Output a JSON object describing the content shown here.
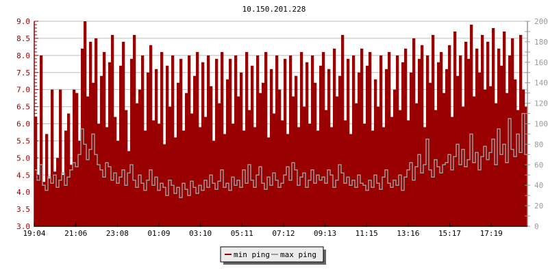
{
  "chart_data": {
    "type": "bar",
    "title": "10.150.201.228",
    "x_tick_labels": [
      "19:04",
      "21:06",
      "23:08",
      "01:09",
      "03:10",
      "05:11",
      "07:12",
      "09:13",
      "11:15",
      "13:16",
      "15:17",
      "17:19"
    ],
    "left_axis": {
      "ylim": [
        3.0,
        9.0
      ],
      "ticks": [
        "3.0",
        "3.5",
        "4.0",
        "4.5",
        "5.0",
        "5.5",
        "6.0",
        "6.5",
        "7.0",
        "7.5",
        "8.0",
        "8.5",
        "9.0"
      ]
    },
    "right_axis": {
      "ylim": [
        0,
        200
      ],
      "ticks": [
        "0",
        "20",
        "40",
        "60",
        "80",
        "100",
        "120",
        "140",
        "160",
        "180",
        "200"
      ]
    },
    "grid": true,
    "legend_position": "bottom",
    "colors": {
      "min_ping": "#990000",
      "max_ping": "#999999",
      "left_axis": "#990000",
      "right_axis": "#999999",
      "grid": "#bbbbbb"
    },
    "series": [
      {
        "name": "min ping",
        "axis": "left",
        "values": [
          6.2,
          4.5,
          8.0,
          4.3,
          5.7,
          4.4,
          7.0,
          4.6,
          5.0,
          7.0,
          4.5,
          5.8,
          6.3,
          4.8,
          7.0,
          6.9,
          5.5,
          8.2,
          9.0,
          6.8,
          8.4,
          7.2,
          8.5,
          6.0,
          7.4,
          8.1,
          5.9,
          7.8,
          8.6,
          6.2,
          5.5,
          7.7,
          8.4,
          6.4,
          5.2,
          7.9,
          8.6,
          6.6,
          7.0,
          8.0,
          5.8,
          7.5,
          8.3,
          6.1,
          7.6,
          6.0,
          8.1,
          5.4,
          7.7,
          6.5,
          8.0,
          5.6,
          7.2,
          7.9,
          5.8,
          6.9,
          8.0,
          6.3,
          7.4,
          8.1,
          5.9,
          7.8,
          6.2,
          8.0,
          7.1,
          5.5,
          7.9,
          6.6,
          8.1,
          5.7,
          7.3,
          7.9,
          6.0,
          8.0,
          6.8,
          7.5,
          5.8,
          8.1,
          6.4,
          7.7,
          5.9,
          8.0,
          6.9,
          7.2,
          8.1,
          5.6,
          7.6,
          6.3,
          8.0,
          7.0,
          6.1,
          7.9,
          5.7,
          8.0,
          6.8,
          7.4,
          5.9,
          8.1,
          6.5,
          7.8,
          6.0,
          8.0,
          7.2,
          5.8,
          7.7,
          8.1,
          6.4,
          7.6,
          5.9,
          8.2,
          6.8,
          7.4,
          8.6,
          6.1,
          7.9,
          5.7,
          8.0,
          6.6,
          7.5,
          8.2,
          6.0,
          7.7,
          8.1,
          5.8,
          7.3,
          6.5,
          8.0,
          5.9,
          7.6,
          8.1,
          6.2,
          7.0,
          8.0,
          6.4,
          7.8,
          8.2,
          6.1,
          7.5,
          8.5,
          6.6,
          7.9,
          8.3,
          5.9,
          8.0,
          7.2,
          8.6,
          6.4,
          7.8,
          8.1,
          6.9,
          7.6,
          8.3,
          6.2,
          8.7,
          7.4,
          8.0,
          6.5,
          8.4,
          7.9,
          8.9,
          6.8,
          8.2,
          7.5,
          8.6,
          7.0,
          8.4,
          7.1,
          8.8,
          6.6,
          8.2,
          7.7,
          8.7,
          6.9,
          8.0,
          8.5,
          7.3,
          6.4,
          8.6,
          7.0,
          6.5
        ]
      },
      {
        "name": "max ping",
        "axis": "right",
        "values": [
          55,
          45,
          60,
          40,
          35,
          48,
          42,
          50,
          38,
          45,
          52,
          40,
          48,
          55,
          62,
          58,
          70,
          95,
          80,
          65,
          75,
          90,
          70,
          60,
          55,
          48,
          62,
          58,
          45,
          52,
          42,
          48,
          55,
          40,
          52,
          60,
          45,
          38,
          50,
          42,
          35,
          45,
          55,
          40,
          48,
          35,
          42,
          38,
          30,
          45,
          40,
          32,
          38,
          28,
          42,
          36,
          30,
          44,
          38,
          32,
          40,
          35,
          45,
          38,
          50,
          42,
          36,
          44,
          55,
          38,
          42,
          35,
          48,
          40,
          45,
          38,
          55,
          42,
          60,
          45,
          38,
          50,
          58,
          42,
          36,
          48,
          40,
          52,
          45,
          38,
          42,
          50,
          58,
          45,
          62,
          55,
          40,
          48,
          52,
          38,
          45,
          55,
          42,
          50,
          45,
          48,
          42,
          55,
          50,
          38,
          45,
          60,
          52,
          42,
          48,
          40,
          45,
          38,
          50,
          42,
          40,
          35,
          45,
          38,
          50,
          42,
          36,
          48,
          55,
          42,
          38,
          45,
          40,
          50,
          35,
          48,
          55,
          62,
          45,
          58,
          70,
          52,
          60,
          85,
          55,
          48,
          65,
          58,
          52,
          60,
          62,
          70,
          55,
          68,
          80,
          60,
          75,
          58,
          65,
          90,
          62,
          72,
          55,
          68,
          78,
          65,
          72,
          85,
          60,
          95,
          70,
          80,
          62,
          105,
          75,
          68,
          90,
          72,
          110,
          70
        ]
      }
    ]
  }
}
